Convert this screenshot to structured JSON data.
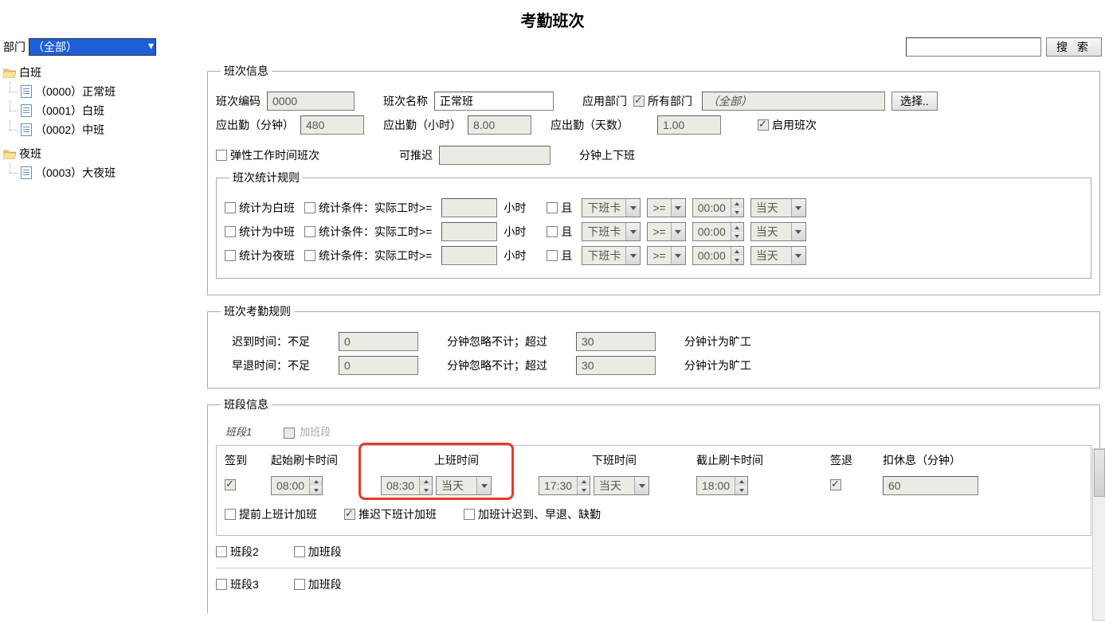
{
  "title": "考勤班次",
  "topbar": {
    "dept_label": "部门",
    "dept_selected": "（全部）",
    "search_value": "",
    "search_btn": "搜 索"
  },
  "tree": {
    "group1": {
      "label": "白班"
    },
    "group1_items": [
      {
        "label": "（0000）正常班"
      },
      {
        "label": "（0001）白班"
      },
      {
        "label": "（0002）中班"
      }
    ],
    "group2": {
      "label": "夜班"
    },
    "group2_items": [
      {
        "label": "（0003）大夜班"
      }
    ]
  },
  "shift_info": {
    "legend": "班次信息",
    "code_label": "班次编码",
    "code_value": "0000",
    "name_label": "班次名称",
    "name_value": "正常班",
    "dept_label": "应用部门",
    "all_dept_label": "所有部门",
    "dept_value": "（全部）",
    "select_btn": "选择..",
    "attend_min_label": "应出勤（分钟）",
    "attend_min_value": "480",
    "attend_hr_label": "应出勤（小时）",
    "attend_hr_value": "8.00",
    "attend_day_label": "应出勤（天数）",
    "attend_day_value": "1.00",
    "enable_label": "启用班次",
    "flex_label": "弹性工作时间班次",
    "delay_label": "可推迟",
    "delay_value": "",
    "delay_suffix": "分钟上下班"
  },
  "stat_rules": {
    "legend": "班次统计规则",
    "rows": [
      {
        "as_label": "统计为白班",
        "cond_label": "统计条件：实际工时>=",
        "hours": "",
        "hour_lbl": "小时",
        "and_lbl": "且",
        "card": "下班卡",
        "op": ">=",
        "time": "00:00",
        "day": "当天"
      },
      {
        "as_label": "统计为中班",
        "cond_label": "统计条件：实际工时>=",
        "hours": "",
        "hour_lbl": "小时",
        "and_lbl": "且",
        "card": "下班卡",
        "op": ">=",
        "time": "00:00",
        "day": "当天"
      },
      {
        "as_label": "统计为夜班",
        "cond_label": "统计条件：实际工时>=",
        "hours": "",
        "hour_lbl": "小时",
        "and_lbl": "且",
        "card": "下班卡",
        "op": ">=",
        "time": "00:00",
        "day": "当天"
      }
    ]
  },
  "attend_rules": {
    "legend": "班次考勤规则",
    "late_label": "迟到时间：不足",
    "late_min": "0",
    "mid_text": "分钟忽略不计；超过",
    "late_over": "30",
    "suffix": "分钟计为旷工",
    "early_label": "早退时间：不足",
    "early_min": "0",
    "early_over": "30"
  },
  "segment": {
    "legend": "班段信息",
    "tab1": "班段1",
    "tab2": "加班段",
    "headers": {
      "signin": "签到",
      "start_card": "起始刷卡时间",
      "on_time": "上班时间",
      "off_time": "下班时间",
      "end_card": "截止刷卡时间",
      "signout": "签退",
      "rest": "扣休息（分钟）"
    },
    "values": {
      "start_card_time": "08:00",
      "on_time": "08:30",
      "on_day": "当天",
      "off_time": "17:30",
      "off_day": "当天",
      "end_card_time": "18:00",
      "rest_min": "60"
    },
    "ot_early": "提前上班计加班",
    "ot_late": "推迟下班计加班",
    "ot_count": "加班计迟到、早退、缺勤",
    "seg2_label": "班段2",
    "seg2_ot": "加班段",
    "seg3_label": "班段3",
    "seg3_ot": "加班段"
  }
}
